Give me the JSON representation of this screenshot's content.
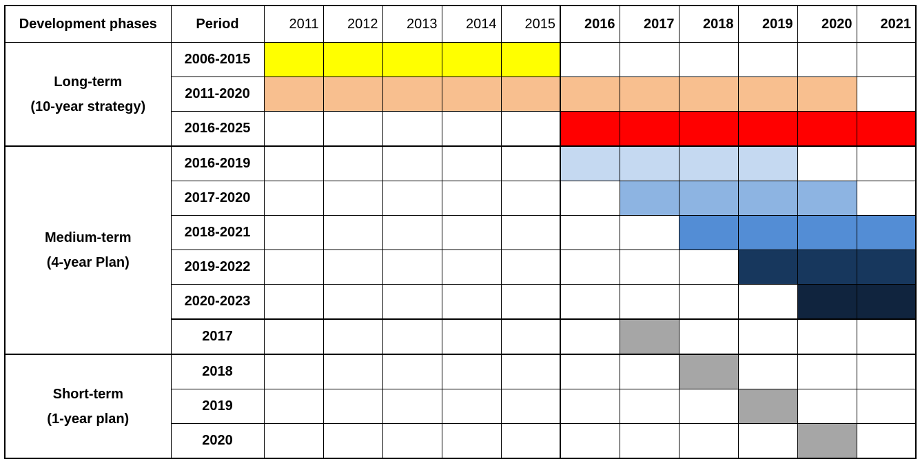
{
  "header": {
    "phase": "Development phases",
    "period": "Period",
    "years": [
      {
        "label": "2011",
        "bold": false
      },
      {
        "label": "2012",
        "bold": false
      },
      {
        "label": "2013",
        "bold": false
      },
      {
        "label": "2014",
        "bold": false
      },
      {
        "label": "2015",
        "bold": false
      },
      {
        "label": "2016",
        "bold": true
      },
      {
        "label": "2017",
        "bold": true
      },
      {
        "label": "2018",
        "bold": true
      },
      {
        "label": "2019",
        "bold": true
      },
      {
        "label": "2020",
        "bold": true
      },
      {
        "label": "2021",
        "bold": true
      }
    ]
  },
  "groups": [
    {
      "label_lines": [
        "Long-term",
        "(10-year strategy)"
      ],
      "rows": [
        {
          "period": "2006-2015",
          "cells": [
            "#ffff00",
            "#ffff00",
            "#ffff00",
            "#ffff00",
            "#ffff00",
            null,
            null,
            null,
            null,
            null,
            null
          ]
        },
        {
          "period": "2011-2020",
          "cells": [
            "#f8bf8f",
            "#f8bf8f",
            "#f8bf8f",
            "#f8bf8f",
            "#f8bf8f",
            "#f8bf8f",
            "#f8bf8f",
            "#f8bf8f",
            "#f8bf8f",
            "#f8bf8f",
            null
          ]
        },
        {
          "period": "2016-2025",
          "cells": [
            null,
            null,
            null,
            null,
            null,
            "#ff0000",
            "#ff0000",
            "#ff0000",
            "#ff0000",
            "#ff0000",
            "#ff0000"
          ]
        }
      ]
    },
    {
      "label_lines": [
        "Medium-term",
        "(4-year Plan)"
      ],
      "rows": [
        {
          "period": "2016-2019",
          "cells": [
            null,
            null,
            null,
            null,
            null,
            "#c5d9f1",
            "#c5d9f1",
            "#c5d9f1",
            "#c5d9f1",
            null,
            null
          ]
        },
        {
          "period": "2017-2020",
          "cells": [
            null,
            null,
            null,
            null,
            null,
            null,
            "#8db4e2",
            "#8db4e2",
            "#8db4e2",
            "#8db4e2",
            null
          ]
        },
        {
          "period": "2018-2021",
          "cells": [
            null,
            null,
            null,
            null,
            null,
            null,
            null,
            "#538dd5",
            "#538dd5",
            "#538dd5",
            "#538dd5"
          ]
        },
        {
          "period": "2019-2022",
          "cells": [
            null,
            null,
            null,
            null,
            null,
            null,
            null,
            null,
            "#17375d",
            "#17375d",
            "#17375d"
          ]
        },
        {
          "period": "2020-2023",
          "cells": [
            null,
            null,
            null,
            null,
            null,
            null,
            null,
            null,
            null,
            "#10243e",
            "#10243e"
          ]
        },
        {
          "period": "2017",
          "rule_above": true,
          "cells": [
            null,
            null,
            null,
            null,
            null,
            null,
            "#a6a6a6",
            null,
            null,
            null,
            null
          ]
        }
      ]
    },
    {
      "label_lines": [
        "Short-term",
        "(1-year plan)"
      ],
      "rows": [
        {
          "period": "2018",
          "cells": [
            null,
            null,
            null,
            null,
            null,
            null,
            null,
            "#a6a6a6",
            null,
            null,
            null
          ]
        },
        {
          "period": "2019",
          "cells": [
            null,
            null,
            null,
            null,
            null,
            null,
            null,
            null,
            "#a6a6a6",
            null,
            null
          ]
        },
        {
          "period": "2020",
          "cells": [
            null,
            null,
            null,
            null,
            null,
            null,
            null,
            null,
            null,
            "#a6a6a6",
            null
          ]
        }
      ]
    }
  ]
}
